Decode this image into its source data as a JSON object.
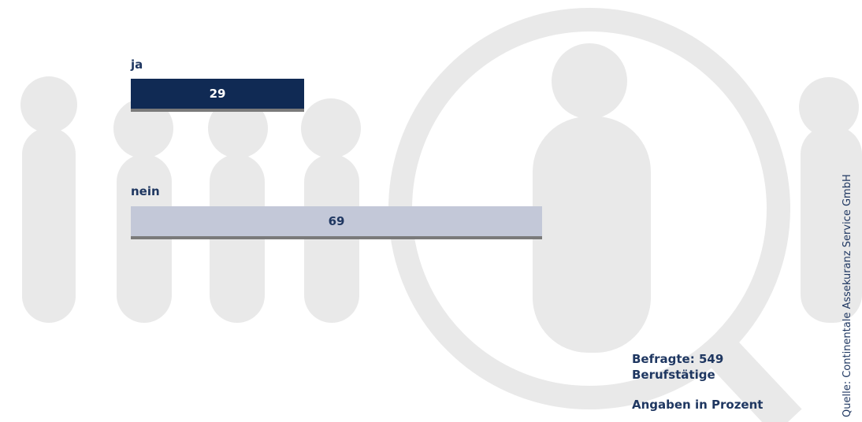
{
  "chart_data": {
    "type": "bar",
    "orientation": "horizontal",
    "categories": [
      "ja",
      "nein"
    ],
    "values": [
      29,
      69
    ],
    "value_unit": "Prozent",
    "xlim": [
      0,
      100
    ],
    "colors": [
      "#102a54",
      "#c3c8d8"
    ],
    "label_colors": [
      "#ffffff",
      "#1f3761"
    ],
    "grid": false,
    "legend": "none"
  },
  "notes": {
    "respondents": "Befragte: 549",
    "respondents_group": "Berufstätige",
    "unit_note": "Angaben in Prozent"
  },
  "source": "Quelle: Continentale Assekuranz Service GmbH",
  "colors": {
    "background_figures": "#e9e9e9",
    "text": "#1f3761"
  }
}
